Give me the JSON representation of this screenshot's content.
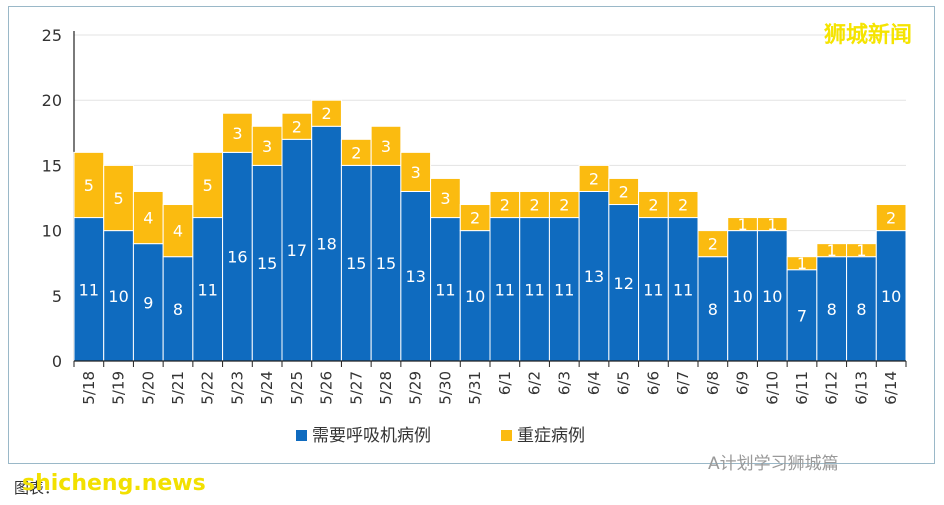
{
  "chart_data": {
    "type": "bar",
    "stacked": true,
    "categories": [
      "5/18",
      "5/19",
      "5/20",
      "5/21",
      "5/22",
      "5/23",
      "5/24",
      "5/25",
      "5/26",
      "5/27",
      "5/28",
      "5/29",
      "5/30",
      "5/31",
      "6/1",
      "6/2",
      "6/3",
      "6/4",
      "6/5",
      "6/6",
      "6/7",
      "6/8",
      "6/9",
      "6/10",
      "6/11",
      "6/12",
      "6/13",
      "6/14"
    ],
    "series": [
      {
        "name": "需要呼吸机病例",
        "color": "#0f6bbf",
        "values": [
          11,
          10,
          9,
          8,
          11,
          16,
          15,
          17,
          18,
          15,
          15,
          13,
          11,
          10,
          11,
          11,
          11,
          13,
          12,
          11,
          11,
          8,
          10,
          10,
          7,
          8,
          8,
          10
        ]
      },
      {
        "name": "重症病例",
        "color": "#fbbb10",
        "values": [
          5,
          5,
          4,
          4,
          5,
          3,
          3,
          2,
          2,
          2,
          3,
          3,
          3,
          2,
          2,
          2,
          2,
          2,
          2,
          2,
          2,
          2,
          1,
          1,
          1,
          1,
          1,
          2
        ]
      }
    ],
    "ylim": [
      0,
      25
    ],
    "yticks": [
      0,
      5,
      10,
      15,
      20,
      25
    ],
    "legend_position": "bottom",
    "grid": true
  },
  "watermarks": {
    "brand": "狮城新闻",
    "wechat": "A计划学习狮城篇",
    "source": "图表：",
    "site": "shicheng.news"
  }
}
